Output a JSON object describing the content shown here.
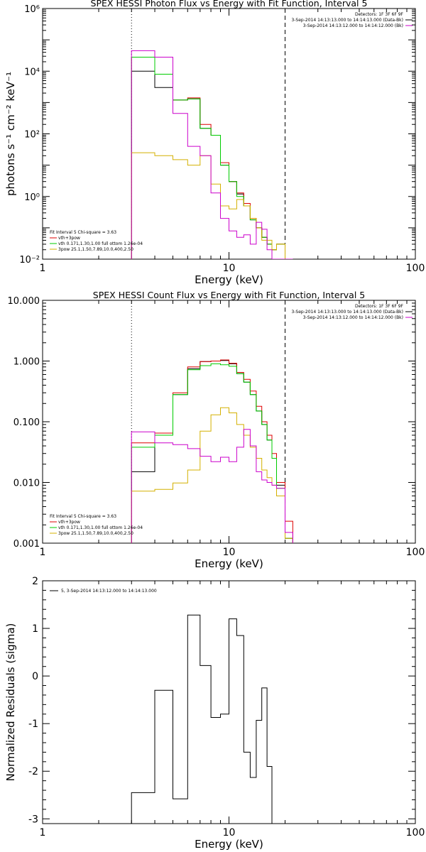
{
  "chart_data": [
    {
      "type": "line",
      "title": "SPEX HESSI Photon Flux vs Energy with Fit Function, Interval 5",
      "xlabel": "Energy (keV)",
      "ylabel": "photons s⁻¹ cm⁻² keV⁻¹",
      "xscale": "log",
      "yscale": "log",
      "xlim": [
        1,
        100
      ],
      "ylim": [
        0.01,
        1000000
      ],
      "x_ticks": [
        "1",
        "10",
        "100"
      ],
      "y_ticks": [
        "10⁻²",
        "10⁰",
        "10²",
        "10⁴",
        "10⁶"
      ],
      "legend_top_right": [
        {
          "text": "Detectors: 1F 3F 6F 9F",
          "color": "#000000"
        },
        {
          "text": "3-Sep-2014 14:13:13.000 to 14:14:13.000 (Data-Bk)",
          "color": "#000000"
        },
        {
          "text": "3-Sep-2014 14:13:12.000 to 14:14:12.000 (Bk)",
          "color": "#cc00cc"
        }
      ],
      "legend_bottom_left": [
        {
          "text": "Fit Interval 5   Chi-square = 3.63",
          "color": "#000000"
        },
        {
          "text": "vth+3pow",
          "color": "#dd0000"
        },
        {
          "text": "vth 0.171,1.30,1.00  full ottom 1.26e-04",
          "color": "#00cc00"
        },
        {
          "text": "3pow 25.1,1.50,7.89,10.0,400,2.50",
          "color": "#d4b000"
        }
      ],
      "vlines": [
        {
          "x": 3,
          "style": "dotted"
        },
        {
          "x": 20,
          "style": "dashed"
        }
      ],
      "edges": [
        3,
        4,
        5,
        6,
        7,
        8,
        9,
        10,
        11,
        12,
        13,
        14,
        15,
        16,
        17,
        18,
        20,
        22
      ],
      "series": [
        {
          "color": "#000000",
          "values": [
            10000,
            3000,
            1200,
            1300,
            150,
            90,
            10,
            3,
            1.2,
            0.5,
            0.18,
            0.1,
            0.05,
            0.03,
            0.02,
            0.03,
            0.008
          ]
        },
        {
          "color": "#dd0000",
          "values": [
            28000,
            8000,
            1200,
            1400,
            200,
            90,
            12,
            3,
            1.3,
            0.6,
            0.2,
            0.1,
            0.05,
            0.03,
            0.02,
            0.03,
            0.008
          ]
        },
        {
          "color": "#00cc00",
          "values": [
            28000,
            8000,
            1200,
            1300,
            150,
            90,
            10,
            3,
            1,
            0.5,
            0.18,
            0.1,
            0.05,
            0.03,
            0.02,
            0.03,
            0.008
          ]
        },
        {
          "color": "#d4b000",
          "values": [
            25,
            20,
            15,
            10,
            20,
            2.5,
            0.5,
            0.4,
            0.8,
            0.5,
            0.2,
            0.1,
            0.04,
            0.04,
            0.02,
            0.03,
            0.009
          ]
        },
        {
          "color": "#cc00cc",
          "values": [
            45000,
            28000,
            450,
            40,
            20,
            1.3,
            0.2,
            0.08,
            0.05,
            0.06,
            0.03,
            0.15,
            0.09,
            0.02,
            0.01,
            0.01,
            0.01
          ]
        }
      ]
    },
    {
      "type": "line",
      "title": "SPEX HESSI Count Flux vs Energy with Fit Function, Interval 5",
      "xlabel": "Energy (keV)",
      "ylabel": "",
      "xscale": "log",
      "yscale": "log",
      "xlim": [
        1,
        100
      ],
      "ylim": [
        0.001,
        10
      ],
      "x_ticks": [
        "1",
        "10",
        "100"
      ],
      "y_ticks": [
        "0.001",
        "0.010",
        "0.100",
        "1.000",
        "10.000"
      ],
      "legend_top_right": [
        {
          "text": "Detectors: 1F 3F 6F 9F",
          "color": "#000000"
        },
        {
          "text": "3-Sep-2014 14:13:13.000 to 14:14:13.000 (Data-Bk)",
          "color": "#000000"
        },
        {
          "text": "3-Sep-2014 14:13:12.000 to 14:14:12.000 (Bk)",
          "color": "#cc00cc"
        }
      ],
      "legend_bottom_left": [
        {
          "text": "Fit Interval 5   Chi-square = 3.63",
          "color": "#000000"
        },
        {
          "text": "vth+3pow",
          "color": "#dd0000"
        },
        {
          "text": "vth 0.171,1.30,1.00  full ottom 1.26e-04",
          "color": "#00cc00"
        },
        {
          "text": "3pow 25.1,1.50,7.89,10.0,400,2.50",
          "color": "#d4b000"
        }
      ],
      "vlines": [
        {
          "x": 3,
          "style": "dotted"
        },
        {
          "x": 20,
          "style": "dashed"
        }
      ],
      "edges": [
        3,
        4,
        5,
        6,
        7,
        8,
        9,
        10,
        11,
        12,
        13,
        14,
        15,
        16,
        17,
        18,
        20,
        22
      ],
      "series": [
        {
          "color": "#000000",
          "values": [
            0.015,
            0.06,
            0.28,
            0.75,
            0.98,
            1.0,
            1.02,
            0.9,
            0.62,
            0.45,
            0.28,
            0.15,
            0.09,
            0.05,
            0.025,
            0.009,
            0.0012
          ]
        },
        {
          "color": "#dd0000",
          "values": [
            0.045,
            0.065,
            0.3,
            0.8,
            0.98,
            1.0,
            1.04,
            0.92,
            0.65,
            0.5,
            0.32,
            0.18,
            0.1,
            0.06,
            0.03,
            0.01,
            0.0023
          ]
        },
        {
          "color": "#00cc00",
          "values": [
            0.038,
            0.06,
            0.28,
            0.72,
            0.84,
            0.9,
            0.87,
            0.82,
            0.62,
            0.45,
            0.28,
            0.15,
            0.09,
            0.05,
            0.025,
            0.008,
            0.0012
          ]
        },
        {
          "color": "#d4b000",
          "values": [
            0.0072,
            0.0077,
            0.0098,
            0.016,
            0.07,
            0.13,
            0.17,
            0.14,
            0.09,
            0.06,
            0.038,
            0.025,
            0.016,
            0.012,
            0.009,
            0.006,
            0.0012
          ]
        },
        {
          "color": "#cc00cc",
          "values": [
            0.068,
            0.045,
            0.042,
            0.036,
            0.027,
            0.022,
            0.026,
            0.022,
            0.038,
            0.075,
            0.04,
            0.015,
            0.011,
            0.01,
            0.009,
            0.008,
            0.0015
          ]
        }
      ]
    },
    {
      "type": "line",
      "title": "",
      "xlabel": "Energy (keV)",
      "ylabel": "Normalized Residuals (sigma)",
      "xscale": "log",
      "yscale": "linear",
      "xlim": [
        1,
        100
      ],
      "ylim": [
        -3.1,
        2
      ],
      "x_ticks": [
        "1",
        "10",
        "100"
      ],
      "y_ticks": [
        "-3",
        "-2",
        "-1",
        "0",
        "1",
        "2"
      ],
      "legend": [
        {
          "text": "5, 3-Sep-2014 14:13:12.000 to 14:14:13.000",
          "color": "#000000"
        }
      ],
      "edges": [
        3,
        4,
        5,
        6,
        7,
        8,
        9,
        10,
        11,
        12,
        13,
        14,
        15,
        16,
        17,
        18,
        20
      ],
      "series": [
        {
          "color": "#000000",
          "values": [
            -2.45,
            -0.3,
            -2.58,
            1.28,
            0.22,
            -0.87,
            -0.8,
            1.2,
            0.85,
            -1.6,
            -2.13,
            -0.93,
            -0.25,
            -1.9,
            -3.1,
            -3.1
          ]
        }
      ]
    }
  ]
}
